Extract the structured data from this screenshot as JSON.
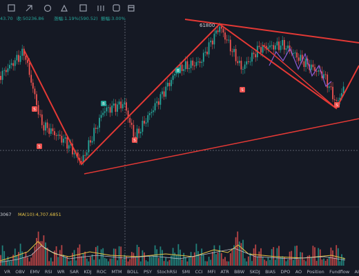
{
  "toolbar_info": {
    "price_fragment": "43.70",
    "close": "收:50236.86",
    "change": "涨幅:1.19%(590.52)",
    "amplitude": "振幅:3.00%"
  },
  "chart_labels": {
    "peak": "61800"
  },
  "markers": [
    {
      "label": "S"
    },
    {
      "label": "S"
    },
    {
      "label": "B"
    },
    {
      "label": "S"
    },
    {
      "label": "B"
    },
    {
      "label": "S"
    },
    {
      "label": "S"
    }
  ],
  "volume_info": {
    "value_fragment": "3067",
    "ma": "MA(10):4,707.6851"
  },
  "indicator_tabs": [
    "VR",
    "OBV",
    "EMV",
    "RSI",
    "WR",
    "SAR",
    "KDJ",
    "ROC",
    "MTM",
    "BOLL",
    "PSY",
    "StochRSI",
    "SMI",
    "CCI",
    "MFI",
    "ATR",
    "BBW",
    "SKDJ",
    "BIAS",
    "DPO",
    "AO",
    "Position",
    "Fundflow",
    "AI-Ve"
  ]
}
